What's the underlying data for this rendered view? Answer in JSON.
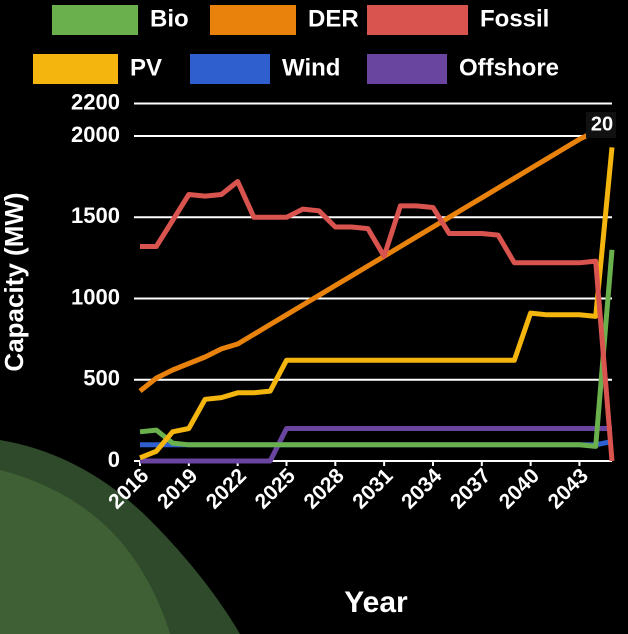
{
  "chart_data": {
    "type": "line",
    "x_label": "Year",
    "y_label": "Capacity (MW)",
    "annotation": "20",
    "x": [
      2016,
      2017,
      2018,
      2019,
      2020,
      2021,
      2022,
      2023,
      2024,
      2025,
      2026,
      2027,
      2028,
      2029,
      2030,
      2031,
      2032,
      2033,
      2034,
      2035,
      2036,
      2037,
      2038,
      2039,
      2040,
      2041,
      2042,
      2043,
      2044,
      2045
    ],
    "xlim": [
      2016,
      2045
    ],
    "xticks": [
      2016,
      2019,
      2022,
      2025,
      2028,
      2031,
      2034,
      2037,
      2040,
      2043
    ],
    "ylim": [
      0,
      2200
    ],
    "yticks": [
      0,
      500,
      1000,
      1500,
      2000,
      2200
    ],
    "grid": true,
    "series": [
      {
        "name": "Bio",
        "color": "#6ab04c",
        "values": [
          180,
          190,
          110,
          100,
          100,
          100,
          100,
          100,
          100,
          100,
          100,
          100,
          100,
          100,
          100,
          100,
          100,
          100,
          100,
          100,
          100,
          100,
          100,
          100,
          100,
          100,
          100,
          100,
          90,
          1300
        ]
      },
      {
        "name": "DER",
        "color": "#e8820c",
        "values": [
          430,
          510,
          560,
          600,
          640,
          690,
          720,
          780,
          840,
          900,
          960,
          1020,
          1080,
          1140,
          1200,
          1260,
          1320,
          1380,
          1440,
          1500,
          1560,
          1620,
          1680,
          1740,
          1800,
          1860,
          1920,
          1980,
          2030,
          2060
        ]
      },
      {
        "name": "Fossil",
        "color": "#d9534f",
        "values": [
          1320,
          1320,
          1480,
          1640,
          1630,
          1640,
          1720,
          1500,
          1500,
          1500,
          1550,
          1540,
          1440,
          1440,
          1430,
          1260,
          1570,
          1570,
          1560,
          1400,
          1400,
          1400,
          1390,
          1220,
          1220,
          1220,
          1220,
          1220,
          1230,
          0
        ]
      },
      {
        "name": "PV",
        "color": "#f5b50f",
        "values": [
          20,
          60,
          180,
          200,
          380,
          390,
          420,
          420,
          430,
          620,
          620,
          620,
          620,
          620,
          620,
          620,
          620,
          620,
          620,
          620,
          620,
          620,
          620,
          620,
          910,
          900,
          900,
          900,
          890,
          1930
        ]
      },
      {
        "name": "Wind",
        "color": "#2f5fcf",
        "values": [
          100,
          100,
          100,
          100,
          100,
          100,
          100,
          100,
          100,
          100,
          100,
          100,
          100,
          100,
          100,
          100,
          100,
          100,
          100,
          100,
          100,
          100,
          100,
          100,
          100,
          100,
          100,
          100,
          100,
          120
        ]
      },
      {
        "name": "Offshore",
        "color": "#6a45a0",
        "values": [
          0,
          0,
          0,
          0,
          0,
          0,
          0,
          0,
          0,
          200,
          200,
          200,
          200,
          200,
          200,
          200,
          200,
          200,
          200,
          200,
          200,
          200,
          200,
          200,
          200,
          200,
          200,
          200,
          200,
          200
        ]
      }
    ]
  }
}
